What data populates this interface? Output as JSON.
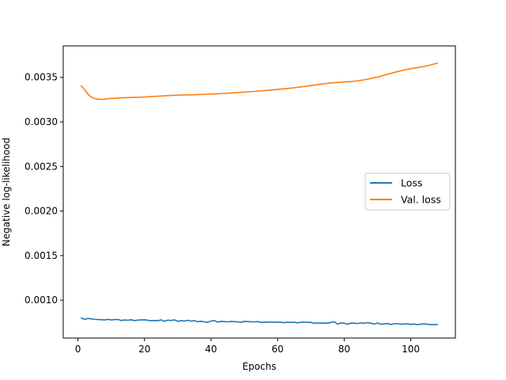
{
  "chart_data": {
    "type": "line",
    "title": "",
    "xlabel": "Epochs",
    "ylabel": "Negative log-likelihood",
    "xlim": [
      -4.4,
      113.4
    ],
    "ylim": [
      0.000575,
      0.003853
    ],
    "xticks": [
      0,
      20,
      40,
      60,
      80,
      100
    ],
    "yticks": [
      0.001,
      0.0015,
      0.002,
      0.0025,
      0.003,
      0.0035
    ],
    "ytick_labels": [
      "0.0010",
      "0.0015",
      "0.0020",
      "0.0025",
      "0.0030",
      "0.0035"
    ],
    "grid": false,
    "legend_position": "center-right",
    "series": [
      {
        "name": "Loss",
        "color": "#1f77b4",
        "x": [
          1,
          2,
          3,
          4,
          5,
          6,
          7,
          8,
          9,
          10,
          11,
          12,
          13,
          14,
          15,
          16,
          17,
          18,
          19,
          20,
          21,
          22,
          23,
          24,
          25,
          26,
          27,
          28,
          29,
          30,
          31,
          32,
          33,
          34,
          35,
          36,
          37,
          38,
          39,
          40,
          41,
          42,
          43,
          44,
          45,
          46,
          47,
          48,
          49,
          50,
          51,
          52,
          53,
          54,
          55,
          56,
          57,
          58,
          59,
          60,
          61,
          62,
          63,
          64,
          65,
          66,
          67,
          68,
          69,
          70,
          71,
          72,
          73,
          74,
          75,
          76,
          77,
          78,
          79,
          80,
          81,
          82,
          83,
          84,
          85,
          86,
          87,
          88,
          89,
          90,
          91,
          92,
          93,
          94,
          95,
          96,
          97,
          98,
          99,
          100,
          101,
          102,
          103,
          104,
          105,
          106,
          107,
          108
        ],
        "y": [
          0.0008,
          0.000785,
          0.000795,
          0.00079,
          0.000786,
          0.000783,
          0.000781,
          0.000778,
          0.000785,
          0.000779,
          0.000782,
          0.000784,
          0.000772,
          0.000778,
          0.000775,
          0.00078,
          0.000771,
          0.000776,
          0.000779,
          0.00078,
          0.000774,
          0.000769,
          0.000772,
          0.00077,
          0.000778,
          0.000763,
          0.000776,
          0.000772,
          0.000779,
          0.000763,
          0.00077,
          0.000766,
          0.000774,
          0.000765,
          0.00077,
          0.000758,
          0.000763,
          0.000756,
          0.000752,
          0.000766,
          0.000771,
          0.000754,
          0.000762,
          0.00076,
          0.000756,
          0.000761,
          0.000759,
          0.000757,
          0.000752,
          0.000762,
          0.00076,
          0.000758,
          0.000756,
          0.00076,
          0.00075,
          0.000754,
          0.000752,
          0.000756,
          0.000751,
          0.000754,
          0.000752,
          0.000748,
          0.000753,
          0.00075,
          0.000752,
          0.000745,
          0.000753,
          0.000755,
          0.00075,
          0.000752,
          0.00074,
          0.000745,
          0.000742,
          0.000744,
          0.000742,
          0.00075,
          0.000757,
          0.000732,
          0.000745,
          0.000742,
          0.000729,
          0.000743,
          0.000742,
          0.000737,
          0.000745,
          0.00074,
          0.000748,
          0.000742,
          0.000732,
          0.000743,
          0.00073,
          0.000733,
          0.000738,
          0.000727,
          0.000735,
          0.000737,
          0.00073,
          0.000733,
          0.000735,
          0.000728,
          0.000732,
          0.000725,
          0.000731,
          0.000734,
          0.00073,
          0.000725,
          0.000727,
          0.000726
        ]
      },
      {
        "name": "Val. loss",
        "color": "#ff7f0e",
        "x": [
          1,
          2,
          3,
          4,
          5,
          6,
          7,
          8,
          9,
          10,
          12,
          14,
          16,
          18,
          20,
          22,
          24,
          26,
          28,
          30,
          32,
          34,
          36,
          38,
          40,
          42,
          44,
          46,
          48,
          50,
          52,
          54,
          56,
          58,
          60,
          62,
          64,
          66,
          68,
          70,
          72,
          74,
          76,
          78,
          80,
          82,
          84,
          86,
          88,
          90,
          92,
          94,
          96,
          98,
          100,
          102,
          104,
          106,
          108
        ],
        "y": [
          0.003405,
          0.003362,
          0.003312,
          0.00328,
          0.003263,
          0.003256,
          0.003253,
          0.003255,
          0.00326,
          0.003263,
          0.003268,
          0.003272,
          0.003275,
          0.003277,
          0.00328,
          0.003285,
          0.003289,
          0.003293,
          0.003297,
          0.0033,
          0.003303,
          0.003305,
          0.003307,
          0.00331,
          0.003313,
          0.003316,
          0.00332,
          0.003325,
          0.00333,
          0.003335,
          0.00334,
          0.003345,
          0.003352,
          0.003358,
          0.003365,
          0.003372,
          0.00338,
          0.003388,
          0.003398,
          0.003408,
          0.003418,
          0.003428,
          0.003437,
          0.003443,
          0.003448,
          0.003453,
          0.003461,
          0.003472,
          0.003487,
          0.003504,
          0.003524,
          0.003545,
          0.003565,
          0.003583,
          0.003598,
          0.00361,
          0.003623,
          0.00364,
          0.00366
        ]
      }
    ]
  }
}
